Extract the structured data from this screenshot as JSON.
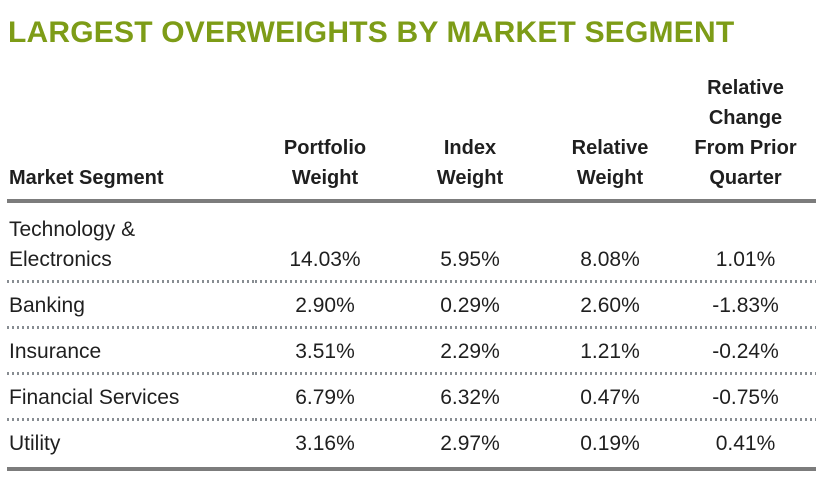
{
  "title": "LARGEST OVERWEIGHTS BY MARKET SEGMENT",
  "colors": {
    "title_green": "#7d9c17",
    "rule_gray": "#7c7c7c",
    "dotted_separator_gray": "#888d92",
    "text": "#1f1f1f",
    "background": "#ffffff"
  },
  "table": {
    "headers": [
      "Market Segment",
      "Portfolio\nWeight",
      "Index\nWeight",
      "Relative\nWeight",
      "Relative\nChange\nFrom Prior\nQuarter"
    ],
    "rows": [
      [
        "Technology &\nElectronics",
        "14.03%",
        "5.95%",
        "8.08%",
        "1.01%"
      ],
      [
        "Banking",
        "2.90%",
        "0.29%",
        "2.60%",
        "-1.83%"
      ],
      [
        "Insurance",
        "3.51%",
        "2.29%",
        "1.21%",
        "-0.24%"
      ],
      [
        "Financial Services",
        "6.79%",
        "6.32%",
        "0.47%",
        "-0.75%"
      ],
      [
        "Utility",
        "3.16%",
        "2.97%",
        "0.19%",
        "0.41%"
      ]
    ]
  },
  "chart_data": {
    "type": "table",
    "title": "LARGEST OVERWEIGHTS BY MARKET SEGMENT",
    "columns": [
      "Market Segment",
      "Portfolio Weight",
      "Index Weight",
      "Relative Weight",
      "Relative Change From Prior Quarter"
    ],
    "rows": [
      {
        "market_segment": "Technology & Electronics",
        "portfolio_weight_pct": 14.03,
        "index_weight_pct": 5.95,
        "relative_weight_pct": 8.08,
        "relative_change_from_prior_quarter_pct": 1.01
      },
      {
        "market_segment": "Banking",
        "portfolio_weight_pct": 2.9,
        "index_weight_pct": 0.29,
        "relative_weight_pct": 2.6,
        "relative_change_from_prior_quarter_pct": -1.83
      },
      {
        "market_segment": "Insurance",
        "portfolio_weight_pct": 3.51,
        "index_weight_pct": 2.29,
        "relative_weight_pct": 1.21,
        "relative_change_from_prior_quarter_pct": -0.24
      },
      {
        "market_segment": "Financial Services",
        "portfolio_weight_pct": 6.79,
        "index_weight_pct": 6.32,
        "relative_weight_pct": 0.47,
        "relative_change_from_prior_quarter_pct": -0.75
      },
      {
        "market_segment": "Utility",
        "portfolio_weight_pct": 3.16,
        "index_weight_pct": 2.97,
        "relative_weight_pct": 0.19,
        "relative_change_from_prior_quarter_pct": 0.41
      }
    ]
  }
}
